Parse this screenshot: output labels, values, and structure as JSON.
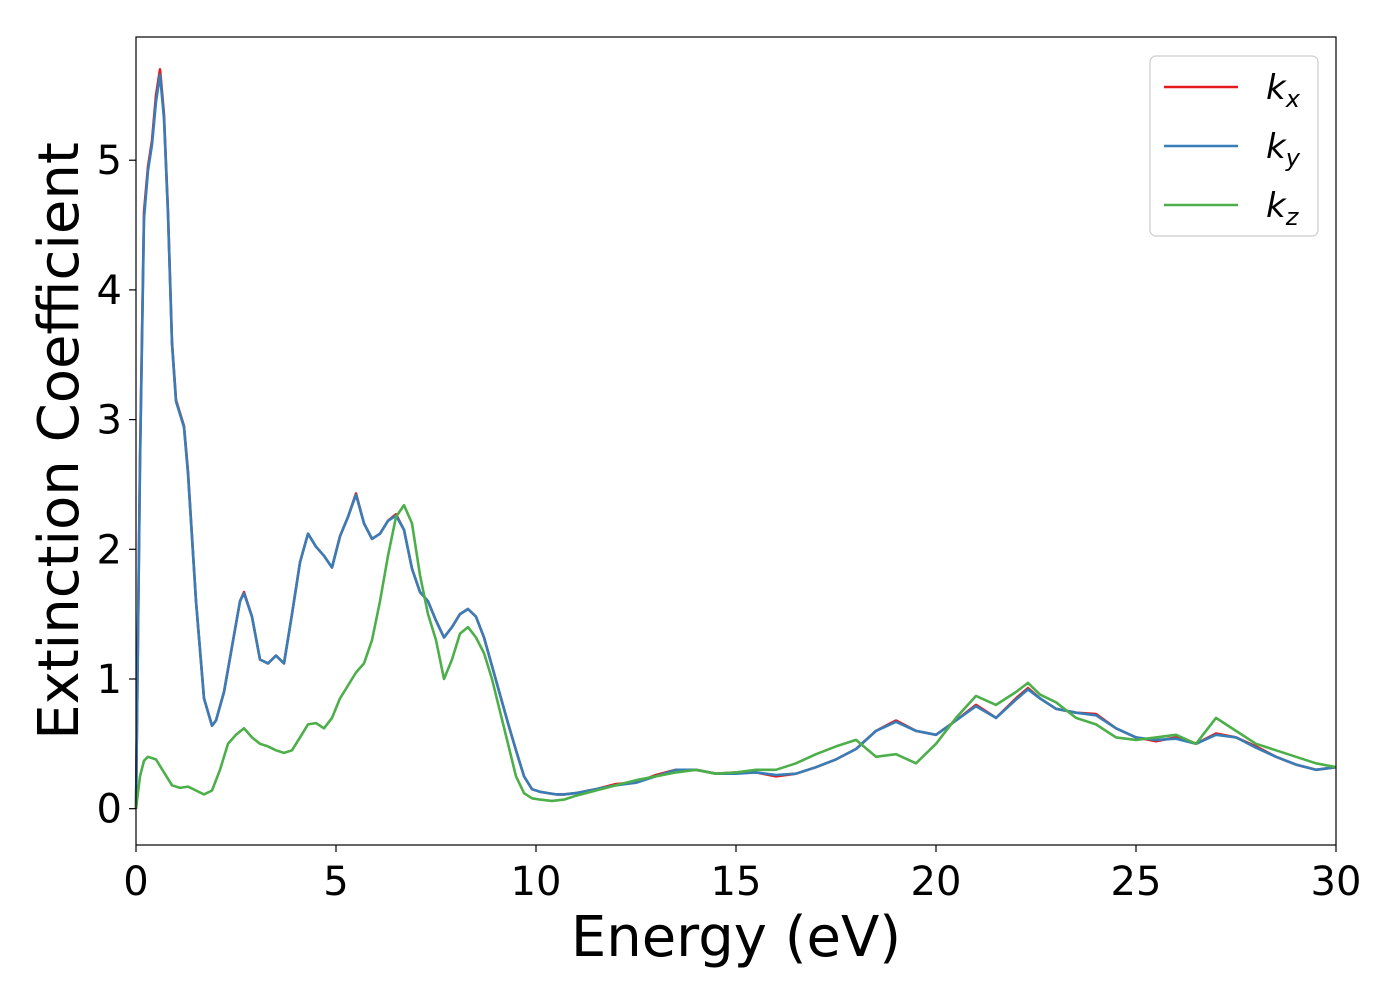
{
  "chart_data": {
    "type": "line",
    "xlabel": "Energy (eV)",
    "ylabel": "Extinction Coefficient",
    "xlim": [
      0,
      30
    ],
    "ylim": [
      -0.28,
      5.95
    ],
    "xticks": [
      "0",
      "5",
      "10",
      "15",
      "20",
      "25",
      "30"
    ],
    "yticks": [
      "0",
      "1",
      "2",
      "3",
      "4",
      "5"
    ],
    "grid": false,
    "legend_position": "top-right",
    "series": [
      {
        "name": "k",
        "subscript": "x",
        "color": "#e41a1c",
        "x": [
          0,
          0.1,
          0.2,
          0.3,
          0.4,
          0.5,
          0.6,
          0.7,
          0.8,
          0.9,
          1.0,
          1.1,
          1.2,
          1.3,
          1.5,
          1.7,
          1.9,
          2.0,
          2.2,
          2.4,
          2.6,
          2.7,
          2.9,
          3.1,
          3.3,
          3.5,
          3.7,
          3.9,
          4.1,
          4.3,
          4.5,
          4.7,
          4.9,
          5.1,
          5.3,
          5.5,
          5.7,
          5.9,
          6.1,
          6.3,
          6.5,
          6.7,
          6.9,
          7.1,
          7.3,
          7.5,
          7.7,
          7.9,
          8.1,
          8.3,
          8.5,
          8.7,
          8.9,
          9.1,
          9.3,
          9.5,
          9.7,
          9.9,
          10.1,
          10.3,
          10.5,
          10.7,
          11.0,
          11.5,
          12.0,
          12.5,
          13.0,
          13.5,
          14.0,
          14.5,
          15.0,
          15.5,
          16.0,
          16.5,
          17.0,
          17.5,
          18.0,
          18.5,
          19.0,
          19.5,
          20.0,
          20.5,
          21.0,
          21.5,
          22.0,
          22.3,
          22.6,
          23.0,
          23.5,
          24.0,
          24.5,
          25.0,
          25.5,
          26.0,
          26.5,
          27.0,
          27.5,
          28.0,
          28.5,
          29.0,
          29.5,
          30.0
        ],
        "y": [
          0.0,
          2.7,
          4.6,
          4.95,
          5.15,
          5.5,
          5.7,
          5.35,
          4.6,
          3.6,
          3.15,
          3.05,
          2.95,
          2.6,
          1.6,
          0.85,
          0.64,
          0.68,
          0.9,
          1.25,
          1.6,
          1.67,
          1.48,
          1.15,
          1.12,
          1.18,
          1.12,
          1.5,
          1.9,
          2.12,
          2.02,
          1.95,
          1.86,
          2.1,
          2.25,
          2.43,
          2.2,
          2.08,
          2.12,
          2.22,
          2.27,
          2.15,
          1.85,
          1.67,
          1.6,
          1.45,
          1.32,
          1.4,
          1.5,
          1.54,
          1.48,
          1.32,
          1.1,
          0.88,
          0.66,
          0.45,
          0.25,
          0.15,
          0.13,
          0.12,
          0.11,
          0.11,
          0.12,
          0.15,
          0.19,
          0.2,
          0.26,
          0.3,
          0.3,
          0.27,
          0.28,
          0.28,
          0.25,
          0.27,
          0.32,
          0.38,
          0.46,
          0.6,
          0.68,
          0.6,
          0.57,
          0.68,
          0.8,
          0.7,
          0.85,
          0.93,
          0.85,
          0.77,
          0.74,
          0.73,
          0.62,
          0.55,
          0.52,
          0.55,
          0.5,
          0.58,
          0.55,
          0.48,
          0.4,
          0.34,
          0.3,
          0.32
        ]
      },
      {
        "name": "k",
        "subscript": "y",
        "color": "#377eb8",
        "x": [
          0,
          0.1,
          0.2,
          0.3,
          0.4,
          0.5,
          0.6,
          0.7,
          0.8,
          0.9,
          1.0,
          1.1,
          1.2,
          1.3,
          1.5,
          1.7,
          1.9,
          2.0,
          2.2,
          2.4,
          2.6,
          2.7,
          2.9,
          3.1,
          3.3,
          3.5,
          3.7,
          3.9,
          4.1,
          4.3,
          4.5,
          4.7,
          4.9,
          5.1,
          5.3,
          5.5,
          5.7,
          5.9,
          6.1,
          6.3,
          6.5,
          6.7,
          6.9,
          7.1,
          7.3,
          7.5,
          7.7,
          7.9,
          8.1,
          8.3,
          8.5,
          8.7,
          8.9,
          9.1,
          9.3,
          9.5,
          9.7,
          9.9,
          10.1,
          10.3,
          10.5,
          10.7,
          11.0,
          11.5,
          12.0,
          12.5,
          13.0,
          13.5,
          14.0,
          14.5,
          15.0,
          15.5,
          16.0,
          16.5,
          17.0,
          17.5,
          18.0,
          18.5,
          19.0,
          19.5,
          20.0,
          20.5,
          21.0,
          21.5,
          22.0,
          22.3,
          22.6,
          23.0,
          23.5,
          24.0,
          24.5,
          25.0,
          25.5,
          26.0,
          26.5,
          27.0,
          27.5,
          28.0,
          28.5,
          29.0,
          29.5,
          30.0
        ],
        "y": [
          0.0,
          2.65,
          4.55,
          4.92,
          5.12,
          5.45,
          5.66,
          5.32,
          4.58,
          3.58,
          3.14,
          3.04,
          2.94,
          2.58,
          1.6,
          0.85,
          0.64,
          0.68,
          0.9,
          1.25,
          1.6,
          1.66,
          1.48,
          1.15,
          1.12,
          1.18,
          1.12,
          1.5,
          1.9,
          2.12,
          2.02,
          1.95,
          1.86,
          2.1,
          2.25,
          2.42,
          2.2,
          2.08,
          2.12,
          2.22,
          2.26,
          2.15,
          1.85,
          1.67,
          1.6,
          1.45,
          1.32,
          1.4,
          1.5,
          1.54,
          1.48,
          1.32,
          1.1,
          0.88,
          0.66,
          0.45,
          0.25,
          0.15,
          0.13,
          0.12,
          0.11,
          0.11,
          0.12,
          0.15,
          0.18,
          0.2,
          0.25,
          0.3,
          0.3,
          0.27,
          0.27,
          0.28,
          0.26,
          0.27,
          0.32,
          0.38,
          0.46,
          0.6,
          0.67,
          0.6,
          0.57,
          0.68,
          0.79,
          0.7,
          0.84,
          0.92,
          0.85,
          0.77,
          0.74,
          0.72,
          0.62,
          0.55,
          0.53,
          0.54,
          0.5,
          0.57,
          0.55,
          0.47,
          0.4,
          0.34,
          0.3,
          0.32
        ]
      },
      {
        "name": "k",
        "subscript": "z",
        "color": "#4daf4a",
        "x": [
          0,
          0.1,
          0.2,
          0.3,
          0.5,
          0.7,
          0.9,
          1.1,
          1.3,
          1.5,
          1.7,
          1.9,
          2.1,
          2.3,
          2.5,
          2.7,
          2.9,
          3.1,
          3.3,
          3.5,
          3.7,
          3.9,
          4.1,
          4.3,
          4.5,
          4.7,
          4.9,
          5.1,
          5.3,
          5.5,
          5.7,
          5.9,
          6.1,
          6.3,
          6.5,
          6.7,
          6.9,
          7.1,
          7.3,
          7.5,
          7.7,
          7.9,
          8.1,
          8.3,
          8.5,
          8.7,
          8.9,
          9.1,
          9.3,
          9.5,
          9.7,
          9.9,
          10.1,
          10.4,
          10.7,
          11.0,
          11.5,
          12.0,
          12.5,
          13.0,
          13.5,
          14.0,
          14.5,
          15.0,
          15.5,
          16.0,
          16.5,
          17.0,
          17.5,
          18.0,
          18.5,
          19.0,
          19.5,
          20.0,
          20.5,
          21.0,
          21.5,
          22.0,
          22.3,
          22.6,
          23.0,
          23.5,
          24.0,
          24.5,
          25.0,
          25.5,
          26.0,
          26.5,
          27.0,
          27.5,
          28.0,
          28.5,
          29.0,
          29.5,
          30.0
        ],
        "y": [
          0.0,
          0.25,
          0.37,
          0.4,
          0.38,
          0.28,
          0.18,
          0.16,
          0.17,
          0.14,
          0.11,
          0.14,
          0.3,
          0.5,
          0.57,
          0.62,
          0.55,
          0.5,
          0.48,
          0.45,
          0.43,
          0.45,
          0.55,
          0.65,
          0.66,
          0.62,
          0.7,
          0.85,
          0.95,
          1.05,
          1.12,
          1.3,
          1.6,
          1.95,
          2.25,
          2.34,
          2.2,
          1.8,
          1.5,
          1.3,
          1.0,
          1.15,
          1.35,
          1.4,
          1.32,
          1.2,
          1.0,
          0.75,
          0.5,
          0.25,
          0.12,
          0.08,
          0.07,
          0.06,
          0.07,
          0.1,
          0.14,
          0.18,
          0.22,
          0.25,
          0.28,
          0.3,
          0.27,
          0.28,
          0.3,
          0.3,
          0.35,
          0.42,
          0.48,
          0.53,
          0.4,
          0.42,
          0.35,
          0.5,
          0.7,
          0.87,
          0.8,
          0.9,
          0.97,
          0.88,
          0.82,
          0.7,
          0.65,
          0.55,
          0.53,
          0.55,
          0.57,
          0.5,
          0.7,
          0.6,
          0.5,
          0.45,
          0.4,
          0.35,
          0.32
        ]
      }
    ]
  }
}
